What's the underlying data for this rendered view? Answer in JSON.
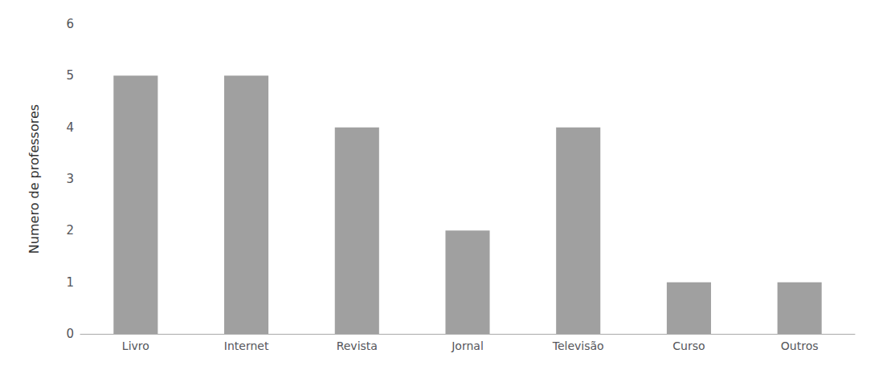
{
  "chart_data": {
    "type": "bar",
    "categories": [
      "Livro",
      "Internet",
      "Revista",
      "Jornal",
      "Televisão",
      "Curso",
      "Outros"
    ],
    "values": [
      5,
      5,
      4,
      2,
      4,
      1,
      1
    ],
    "color": "#a0a0a0",
    "ylabel": "Numero de professores",
    "ylim": [
      0,
      6
    ],
    "yticks": [
      0,
      1,
      2,
      3,
      4,
      5,
      6
    ],
    "grid": false
  }
}
